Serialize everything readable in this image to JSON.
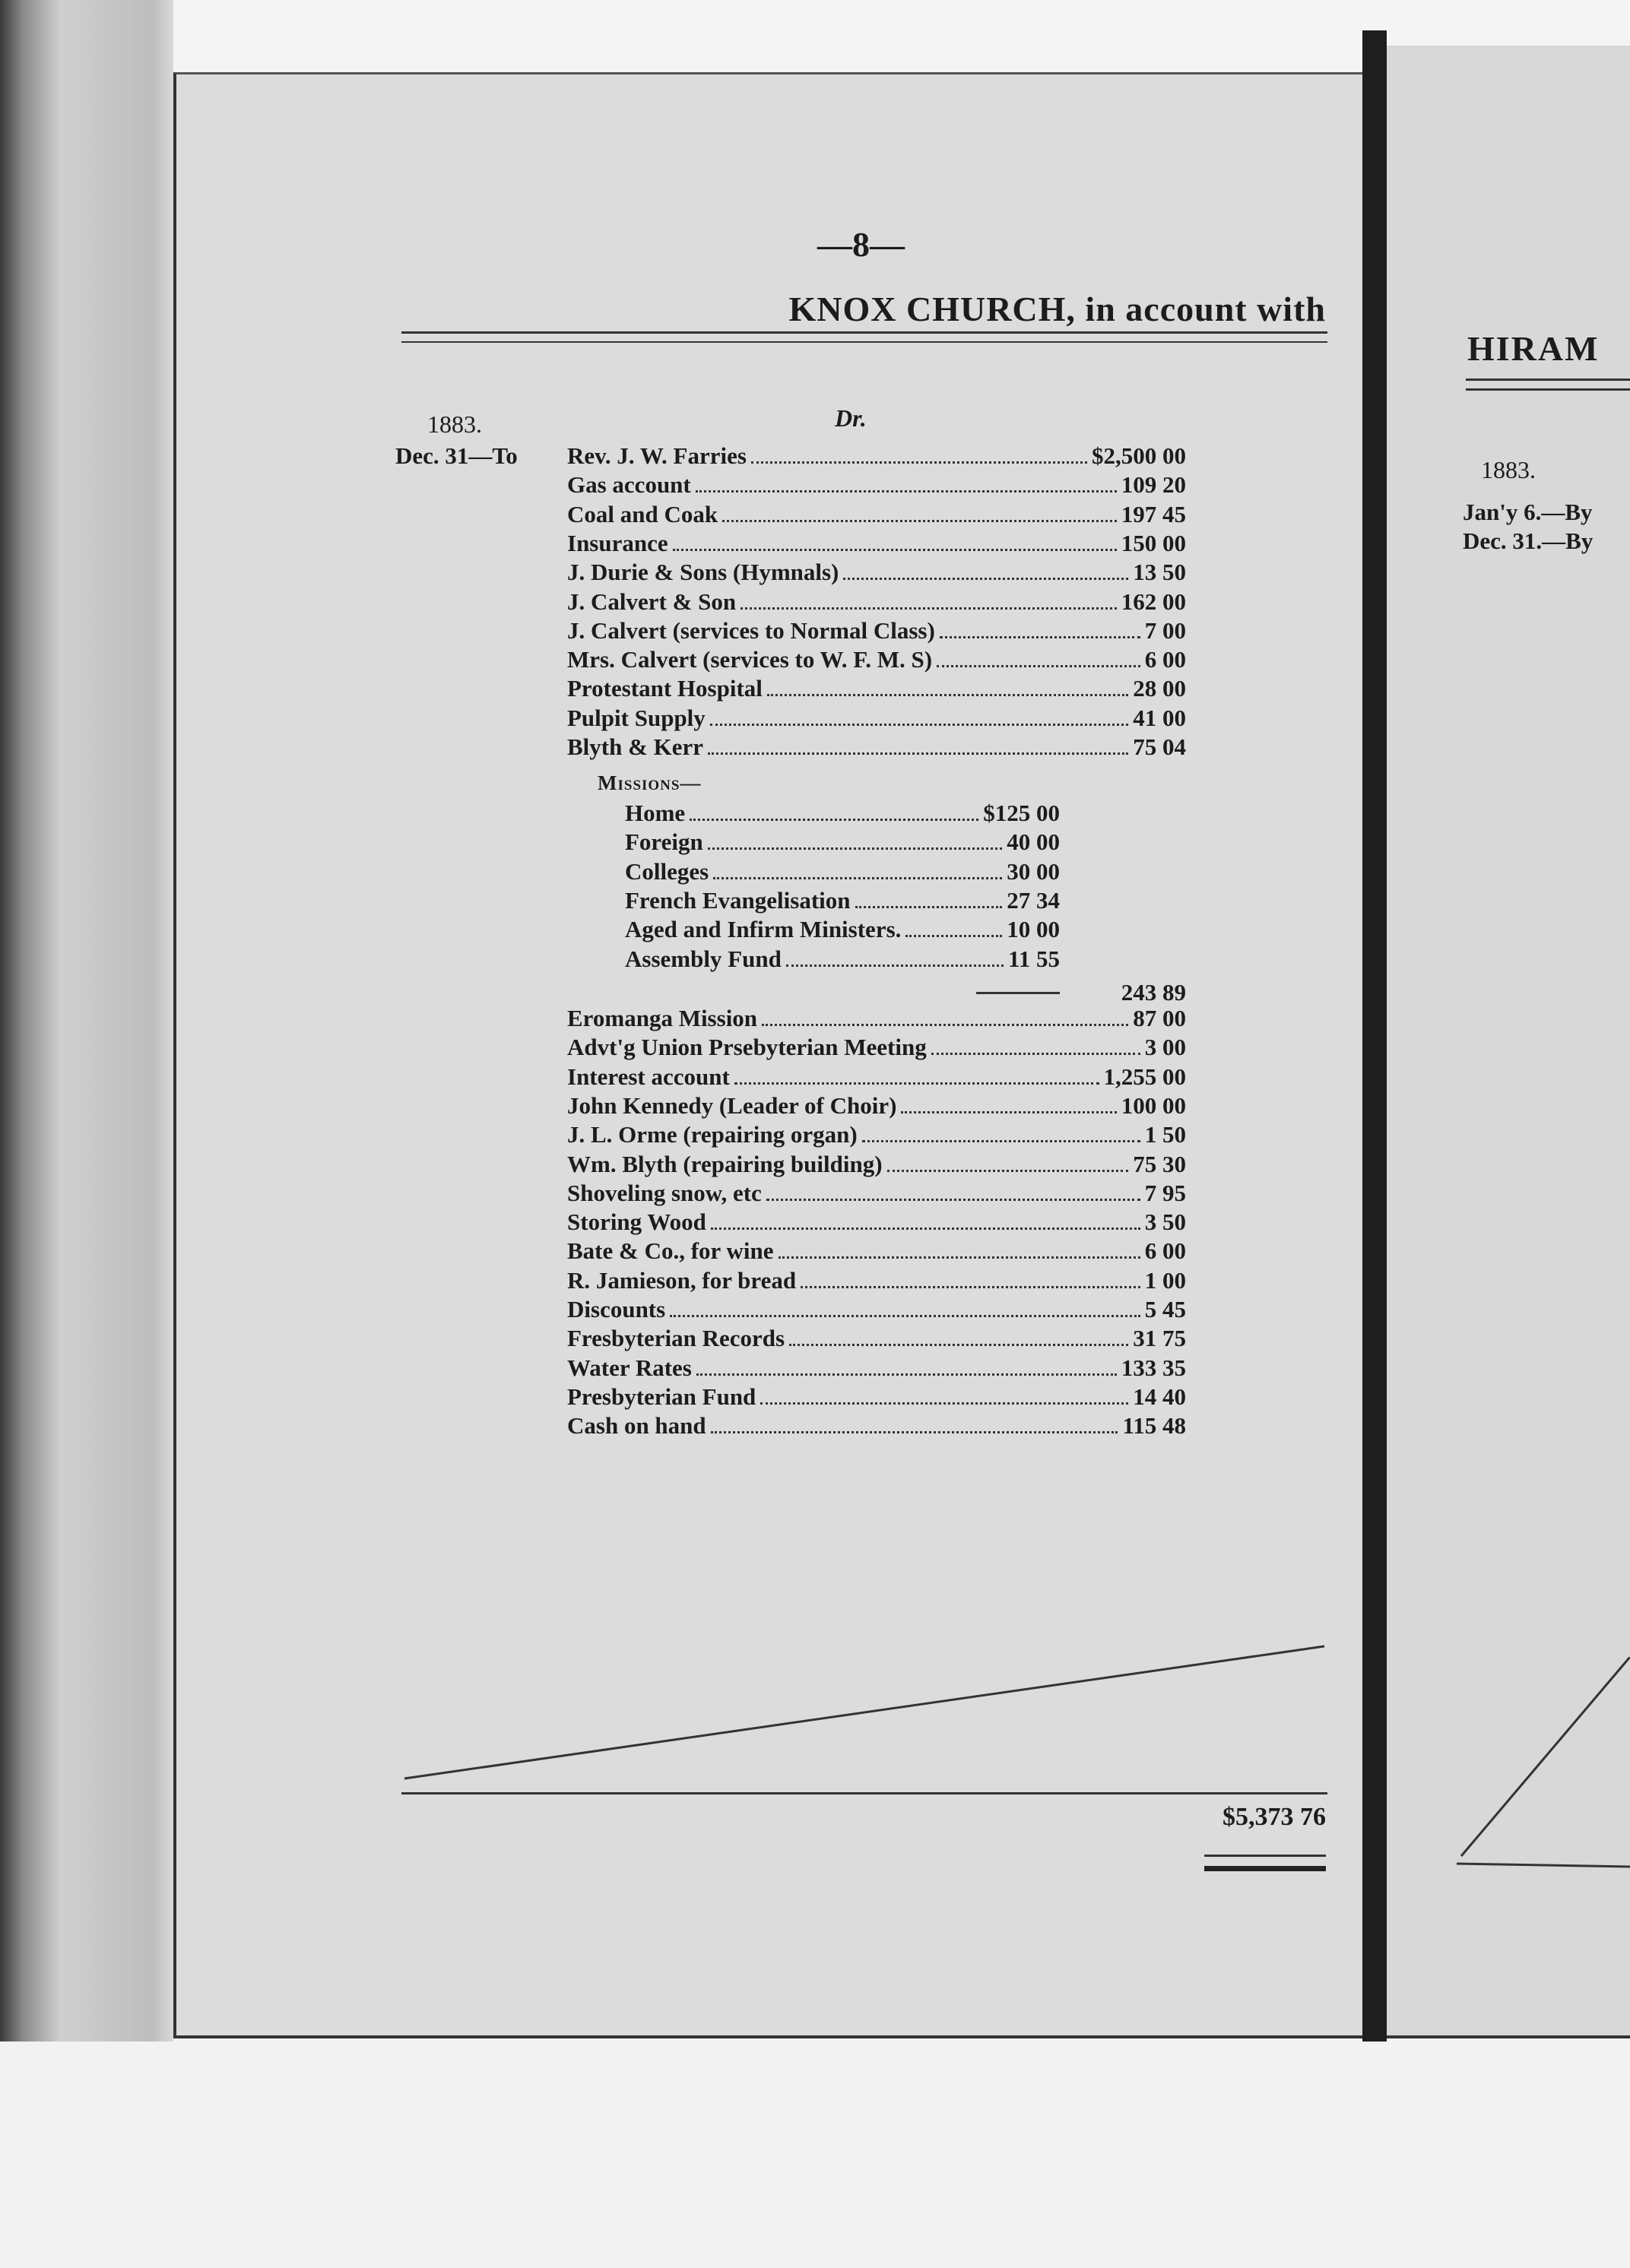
{
  "left_page": {
    "page_number": "—8—",
    "title": "KNOX CHURCH, in account with",
    "year": "1883.",
    "side": "Dr.",
    "date_label": "Dec. 31—To",
    "entries": [
      {
        "label": "Rev. J. W. Farries",
        "amount": "$2,500 00"
      },
      {
        "label": "Gas account",
        "amount": "109 20"
      },
      {
        "label": "Coal and Coak",
        "amount": "197 45"
      },
      {
        "label": "Insurance",
        "amount": "150 00"
      },
      {
        "label": "J. Durie & Sons (Hymnals)",
        "amount": "13 50"
      },
      {
        "label": "J. Calvert & Son",
        "amount": "162 00"
      },
      {
        "label": "J. Calvert (services to Normal Class)",
        "amount": "7 00"
      },
      {
        "label": "Mrs. Calvert (services to W. F. M. S)",
        "amount": "6 00"
      },
      {
        "label": "Protestant Hospital",
        "amount": "28 00"
      },
      {
        "label": "Pulpit Supply",
        "amount": "41 00"
      },
      {
        "label": "Blyth & Kerr",
        "amount": "75 04"
      }
    ],
    "missions": {
      "heading": "Missions—",
      "items": [
        {
          "label": "Home",
          "amount": "$125 00"
        },
        {
          "label": "Foreign",
          "amount": "40 00"
        },
        {
          "label": "Colleges",
          "amount": "30 00"
        },
        {
          "label": "French Evangelisation",
          "amount": "27 34"
        },
        {
          "label": "Aged and Infirm Ministers.",
          "amount": "10 00"
        },
        {
          "label": "Assembly Fund",
          "amount": "11 55"
        }
      ],
      "subtotal": "243 89"
    },
    "entries2": [
      {
        "label": "Eromanga Mission",
        "amount": "87 00"
      },
      {
        "label": "Advt'g Union Prsebyterian Meeting",
        "amount": "3 00"
      },
      {
        "label": "Interest account",
        "amount": "1,255 00"
      },
      {
        "label": "John Kennedy (Leader of Choir)",
        "amount": "100 00"
      },
      {
        "label": "J. L. Orme (repairing organ)",
        "amount": "1 50"
      },
      {
        "label": "Wm. Blyth (repairing building)",
        "amount": "75 30"
      },
      {
        "label": "Shoveling snow, etc",
        "amount": "7 95"
      },
      {
        "label": "Storing Wood",
        "amount": "3 50"
      },
      {
        "label": "Bate & Co., for wine",
        "amount": "6 00"
      },
      {
        "label": "R. Jamieson, for bread",
        "amount": "1 00"
      },
      {
        "label": "Discounts",
        "amount": "5 45"
      },
      {
        "label": "Fresbyterian Records",
        "amount": "31 75"
      },
      {
        "label": "Water Rates",
        "amount": "133 35"
      },
      {
        "label": "Presbyterian Fund",
        "amount": "14 40"
      },
      {
        "label": "Cash on hand",
        "amount": "115 48"
      }
    ],
    "total": "$5,373 76"
  },
  "right_page": {
    "title": "HIRAM",
    "year": "1883.",
    "rows": [
      "Jan'y 6.—By",
      "Dec. 31.—By"
    ]
  }
}
